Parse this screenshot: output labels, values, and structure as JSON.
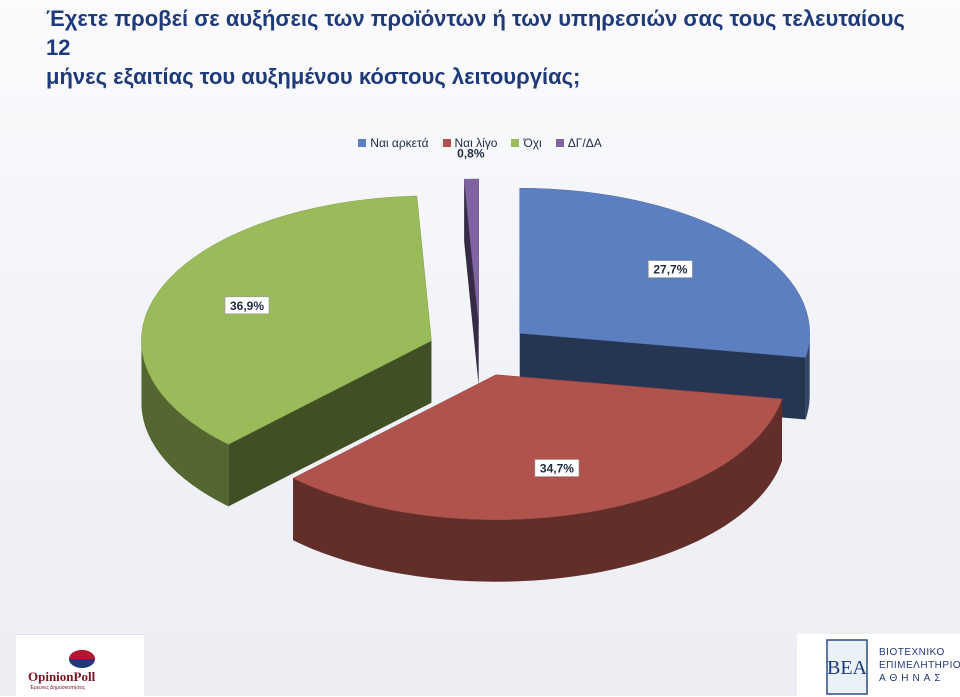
{
  "title_lines": [
    "Έχετε προβεί σε αυξήσεις των προϊόντων ή των υπηρεσιών σας τους τελευταίους 12",
    "μήνες εξαιτίας του αυξημένου κόστους λειτουργίας;"
  ],
  "chart_data": {
    "type": "pie",
    "title": "Έχετε προβεί σε αυξήσεις των προϊόντων ή των υπηρεσιών σας τους τελευταίους 12 μήνες εξαιτίας του αυξημένου κόστους λειτουργίας;",
    "legend_position": "top",
    "exploded": true,
    "three_d": true,
    "categories": [
      "Ναι αρκετά",
      "Ναι λίγο",
      "Όχι",
      "ΔΓ/ΔΑ"
    ],
    "values": [
      27.7,
      34.7,
      36.9,
      0.8
    ],
    "labels": [
      "27,7%",
      "34,7%",
      "36,9%",
      "0,8%"
    ],
    "colors": [
      "#5b7fc0",
      "#b0534c",
      "#9abb59",
      "#8064a2"
    ]
  },
  "logos": {
    "left": {
      "name": "OpinionPoll",
      "tagline": "Έρευνες Δημοσκοπήσεις"
    },
    "right": {
      "mark": "ΒΕΑ",
      "lines": [
        "ΒΙΟΤΕΧΝΙΚΟ",
        "ΕΠΙΜΕΛΗΤΗΡΙΟ",
        "ΑΘΗΝΑΣ"
      ]
    }
  }
}
